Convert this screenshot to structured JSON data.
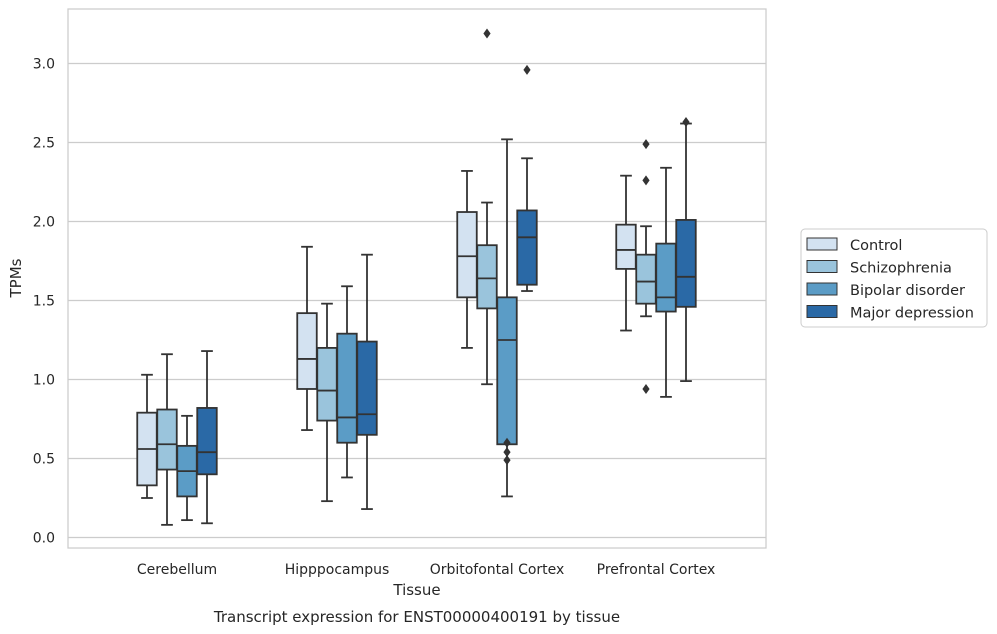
{
  "chart_data": {
    "type": "box",
    "caption": "Transcript expression for ENST00000400191 by tissue",
    "xlabel": "Tissue",
    "ylabel": "TPMs",
    "ylim": [
      -0.07,
      3.35
    ],
    "yticks": [
      0.0,
      0.5,
      1.0,
      1.5,
      2.0,
      2.5,
      3.0
    ],
    "ytick_labels": [
      "0.0",
      "0.5",
      "1.0",
      "1.5",
      "2.0",
      "2.5",
      "3.0"
    ],
    "grid": "horizontal",
    "legend_position": "right",
    "categories": [
      "Cerebellum",
      "Hipppocampus",
      "Orbitofontal Cortex",
      "Prefrontal Cortex"
    ],
    "series": [
      {
        "name": "Control",
        "color": "#d3e2f1",
        "boxes": [
          {
            "whisker_low": 0.25,
            "q1": 0.33,
            "median": 0.56,
            "q3": 0.79,
            "whisker_high": 1.03,
            "outliers": []
          },
          {
            "whisker_low": 0.68,
            "q1": 0.94,
            "median": 1.13,
            "q3": 1.42,
            "whisker_high": 1.84,
            "outliers": []
          },
          {
            "whisker_low": 1.2,
            "q1": 1.52,
            "median": 1.78,
            "q3": 2.06,
            "whisker_high": 2.32,
            "outliers": []
          },
          {
            "whisker_low": 1.31,
            "q1": 1.7,
            "median": 1.82,
            "q3": 1.98,
            "whisker_high": 2.29,
            "outliers": []
          }
        ]
      },
      {
        "name": "Schizophrenia",
        "color": "#9ac4dc",
        "boxes": [
          {
            "whisker_low": 0.08,
            "q1": 0.43,
            "median": 0.59,
            "q3": 0.81,
            "whisker_high": 1.16,
            "outliers": []
          },
          {
            "whisker_low": 0.23,
            "q1": 0.74,
            "median": 0.93,
            "q3": 1.2,
            "whisker_high": 1.48,
            "outliers": []
          },
          {
            "whisker_low": 0.97,
            "q1": 1.45,
            "median": 1.64,
            "q3": 1.85,
            "whisker_high": 2.12,
            "outliers": [
              3.19
            ]
          },
          {
            "whisker_low": 1.4,
            "q1": 1.48,
            "median": 1.62,
            "q3": 1.79,
            "whisker_high": 1.97,
            "outliers": [
              2.49,
              2.26,
              0.94
            ]
          }
        ]
      },
      {
        "name": "Bipolar disorder",
        "color": "#5b9cc6",
        "boxes": [
          {
            "whisker_low": 0.11,
            "q1": 0.26,
            "median": 0.42,
            "q3": 0.58,
            "whisker_high": 0.77,
            "outliers": []
          },
          {
            "whisker_low": 0.38,
            "q1": 0.6,
            "median": 0.76,
            "q3": 1.29,
            "whisker_high": 1.59,
            "outliers": []
          },
          {
            "whisker_low": 0.26,
            "q1": 0.59,
            "median": 1.25,
            "q3": 1.52,
            "whisker_high": 2.52,
            "outliers": [
              0.6,
              0.54,
              0.49
            ]
          },
          {
            "whisker_low": 0.89,
            "q1": 1.43,
            "median": 1.52,
            "q3": 1.86,
            "whisker_high": 2.34,
            "outliers": []
          }
        ]
      },
      {
        "name": "Major depression",
        "color": "#2a69a6",
        "boxes": [
          {
            "whisker_low": 0.09,
            "q1": 0.4,
            "median": 0.54,
            "q3": 0.82,
            "whisker_high": 1.18,
            "outliers": []
          },
          {
            "whisker_low": 0.18,
            "q1": 0.65,
            "median": 0.78,
            "q3": 1.24,
            "whisker_high": 1.79,
            "outliers": []
          },
          {
            "whisker_low": 1.56,
            "q1": 1.6,
            "median": 1.9,
            "q3": 2.07,
            "whisker_high": 2.4,
            "outliers": [
              2.96
            ]
          },
          {
            "whisker_low": 0.99,
            "q1": 1.46,
            "median": 1.65,
            "q3": 2.01,
            "whisker_high": 2.62,
            "outliers": [
              2.63
            ]
          }
        ]
      }
    ]
  }
}
